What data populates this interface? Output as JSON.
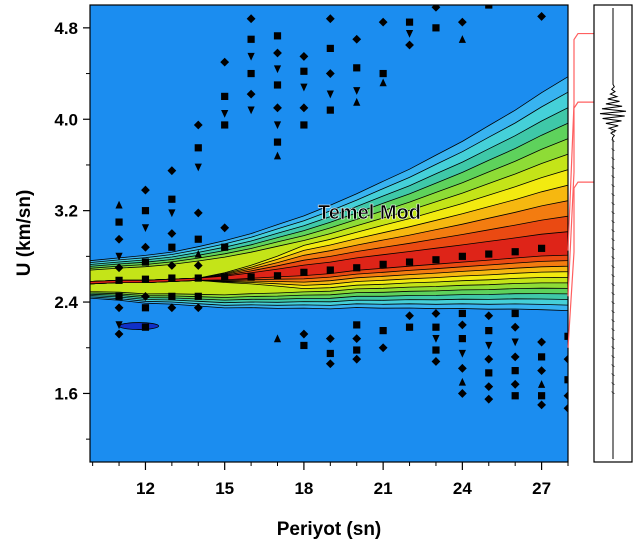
{
  "chart_data": {
    "type": "heatmap",
    "xlabel": "Periyot (sn)",
    "ylabel": "U (km/sn)",
    "xlim": [
      9.9,
      28.0
    ],
    "ylim": [
      1.0,
      5.0
    ],
    "xticks": [
      12,
      15,
      18,
      21,
      24,
      27
    ],
    "yticks": [
      1.6,
      2.4,
      3.2,
      4.0,
      4.8
    ],
    "xtick_labels": [
      "12",
      "15",
      "18",
      "21",
      "24",
      "27"
    ],
    "ytick_labels": [
      "1.6",
      "2.4",
      "3.2",
      "4.0",
      "4.8"
    ],
    "annotation": "Temel Mod",
    "colors": [
      "#1b8df0",
      "#38b3f0",
      "#45d0d8",
      "#3fc8a8",
      "#5ed25c",
      "#8edc36",
      "#c4e418",
      "#f2ea10",
      "#f6b810",
      "#f37c10",
      "#ea4a12",
      "#de2418"
    ],
    "ridge": [
      {
        "x": 9.9,
        "y": 2.57,
        "w": 0.05
      },
      {
        "x": 11,
        "y": 2.58,
        "w": 0.06
      },
      {
        "x": 12,
        "y": 2.58,
        "w": 0.07
      },
      {
        "x": 13,
        "y": 2.59,
        "w": 0.07
      },
      {
        "x": 14,
        "y": 2.6,
        "w": 0.08
      },
      {
        "x": 15,
        "y": 2.61,
        "w": 0.09
      },
      {
        "x": 16,
        "y": 2.63,
        "w": 0.09
      },
      {
        "x": 17,
        "y": 2.65,
        "w": 0.1
      },
      {
        "x": 18,
        "y": 2.67,
        "w": 0.1
      },
      {
        "x": 19,
        "y": 2.69,
        "w": 0.11
      },
      {
        "x": 20,
        "y": 2.72,
        "w": 0.11
      },
      {
        "x": 21,
        "y": 2.74,
        "w": 0.12
      },
      {
        "x": 22,
        "y": 2.76,
        "w": 0.12
      },
      {
        "x": 23,
        "y": 2.78,
        "w": 0.13
      },
      {
        "x": 24,
        "y": 2.8,
        "w": 0.13
      },
      {
        "x": 25,
        "y": 2.82,
        "w": 0.14
      },
      {
        "x": 26,
        "y": 2.84,
        "w": 0.14
      },
      {
        "x": 27,
        "y": 2.86,
        "w": 0.15
      },
      {
        "x": 28.0,
        "y": 2.87,
        "w": 0.15
      }
    ],
    "ridge_points": [
      {
        "x": 11,
        "y": 2.59
      },
      {
        "x": 12,
        "y": 2.6
      },
      {
        "x": 13,
        "y": 2.61
      },
      {
        "x": 14,
        "y": 2.61
      },
      {
        "x": 15,
        "y": 2.62
      },
      {
        "x": 16,
        "y": 2.62
      },
      {
        "x": 17,
        "y": 2.63
      },
      {
        "x": 18,
        "y": 2.66
      },
      {
        "x": 19,
        "y": 2.68
      },
      {
        "x": 20,
        "y": 2.7
      },
      {
        "x": 21,
        "y": 2.73
      },
      {
        "x": 22,
        "y": 2.75
      },
      {
        "x": 23,
        "y": 2.77
      },
      {
        "x": 24,
        "y": 2.8
      },
      {
        "x": 25,
        "y": 2.82
      },
      {
        "x": 26,
        "y": 2.84
      },
      {
        "x": 27,
        "y": 2.87
      }
    ],
    "scatter_points": [
      {
        "x": 11,
        "y": 3.25,
        "m": "up"
      },
      {
        "x": 11,
        "y": 3.1,
        "m": "sq"
      },
      {
        "x": 11,
        "y": 2.95,
        "m": "dia"
      },
      {
        "x": 11,
        "y": 2.8,
        "m": "down"
      },
      {
        "x": 11,
        "y": 2.7,
        "m": "dia"
      },
      {
        "x": 11,
        "y": 2.45,
        "m": "sq"
      },
      {
        "x": 11,
        "y": 2.35,
        "m": "dia"
      },
      {
        "x": 11,
        "y": 2.2,
        "m": "down"
      },
      {
        "x": 11,
        "y": 2.12,
        "m": "dia"
      },
      {
        "x": 12,
        "y": 3.38,
        "m": "dia"
      },
      {
        "x": 12,
        "y": 3.2,
        "m": "sq"
      },
      {
        "x": 12,
        "y": 3.05,
        "m": "down"
      },
      {
        "x": 12,
        "y": 2.88,
        "m": "dia"
      },
      {
        "x": 12,
        "y": 2.75,
        "m": "sq"
      },
      {
        "x": 12,
        "y": 2.45,
        "m": "dia"
      },
      {
        "x": 12,
        "y": 2.35,
        "m": "sq"
      },
      {
        "x": 12,
        "y": 2.18,
        "m": "sq"
      },
      {
        "x": 13,
        "y": 3.55,
        "m": "dia"
      },
      {
        "x": 13,
        "y": 3.3,
        "m": "sq"
      },
      {
        "x": 13,
        "y": 3.18,
        "m": "down"
      },
      {
        "x": 13,
        "y": 3.0,
        "m": "dia"
      },
      {
        "x": 13,
        "y": 2.88,
        "m": "sq"
      },
      {
        "x": 13,
        "y": 2.72,
        "m": "dia"
      },
      {
        "x": 13,
        "y": 2.45,
        "m": "sq"
      },
      {
        "x": 13,
        "y": 2.35,
        "m": "dia"
      },
      {
        "x": 14,
        "y": 3.95,
        "m": "dia"
      },
      {
        "x": 14,
        "y": 3.75,
        "m": "sq"
      },
      {
        "x": 14,
        "y": 3.58,
        "m": "down"
      },
      {
        "x": 14,
        "y": 3.18,
        "m": "dia"
      },
      {
        "x": 14,
        "y": 2.95,
        "m": "sq"
      },
      {
        "x": 14,
        "y": 2.82,
        "m": "up"
      },
      {
        "x": 14,
        "y": 2.72,
        "m": "dia"
      },
      {
        "x": 14,
        "y": 2.45,
        "m": "sq"
      },
      {
        "x": 14,
        "y": 2.35,
        "m": "dia"
      },
      {
        "x": 15,
        "y": 4.5,
        "m": "dia"
      },
      {
        "x": 15,
        "y": 4.2,
        "m": "sq"
      },
      {
        "x": 15,
        "y": 4.05,
        "m": "down"
      },
      {
        "x": 15,
        "y": 3.95,
        "m": "sq"
      },
      {
        "x": 15,
        "y": 3.05,
        "m": "dia"
      },
      {
        "x": 15,
        "y": 2.88,
        "m": "sq"
      },
      {
        "x": 16,
        "y": 4.88,
        "m": "dia"
      },
      {
        "x": 16,
        "y": 4.7,
        "m": "sq"
      },
      {
        "x": 16,
        "y": 4.55,
        "m": "down"
      },
      {
        "x": 16,
        "y": 4.4,
        "m": "sq"
      },
      {
        "x": 16,
        "y": 4.22,
        "m": "dia"
      },
      {
        "x": 16,
        "y": 4.08,
        "m": "down"
      },
      {
        "x": 17,
        "y": 4.73,
        "m": "sq"
      },
      {
        "x": 17,
        "y": 4.58,
        "m": "dia"
      },
      {
        "x": 17,
        "y": 4.44,
        "m": "down"
      },
      {
        "x": 17,
        "y": 4.3,
        "m": "sq"
      },
      {
        "x": 17,
        "y": 4.1,
        "m": "dia"
      },
      {
        "x": 17,
        "y": 3.95,
        "m": "down"
      },
      {
        "x": 17,
        "y": 3.8,
        "m": "sq"
      },
      {
        "x": 17,
        "y": 3.68,
        "m": "up"
      },
      {
        "x": 17,
        "y": 2.08,
        "m": "up"
      },
      {
        "x": 18,
        "y": 4.55,
        "m": "dia"
      },
      {
        "x": 18,
        "y": 4.42,
        "m": "sq"
      },
      {
        "x": 18,
        "y": 4.28,
        "m": "down"
      },
      {
        "x": 18,
        "y": 4.1,
        "m": "dia"
      },
      {
        "x": 18,
        "y": 3.95,
        "m": "sq"
      },
      {
        "x": 18,
        "y": 2.12,
        "m": "dia"
      },
      {
        "x": 18,
        "y": 2.02,
        "m": "sq"
      },
      {
        "x": 19,
        "y": 4.88,
        "m": "dia"
      },
      {
        "x": 19,
        "y": 4.62,
        "m": "sq"
      },
      {
        "x": 19,
        "y": 4.4,
        "m": "dia"
      },
      {
        "x": 19,
        "y": 4.22,
        "m": "down"
      },
      {
        "x": 19,
        "y": 4.08,
        "m": "sq"
      },
      {
        "x": 19,
        "y": 2.08,
        "m": "dia"
      },
      {
        "x": 19,
        "y": 1.95,
        "m": "sq"
      },
      {
        "x": 19,
        "y": 1.86,
        "m": "dia"
      },
      {
        "x": 20,
        "y": 4.7,
        "m": "dia"
      },
      {
        "x": 20,
        "y": 4.45,
        "m": "sq"
      },
      {
        "x": 20,
        "y": 4.25,
        "m": "down"
      },
      {
        "x": 20,
        "y": 4.15,
        "m": "up"
      },
      {
        "x": 20,
        "y": 2.2,
        "m": "sq"
      },
      {
        "x": 20,
        "y": 2.08,
        "m": "dia"
      },
      {
        "x": 20,
        "y": 1.98,
        "m": "sq"
      },
      {
        "x": 20,
        "y": 1.9,
        "m": "dia"
      },
      {
        "x": 21,
        "y": 4.85,
        "m": "dia"
      },
      {
        "x": 21,
        "y": 4.4,
        "m": "sq"
      },
      {
        "x": 21,
        "y": 4.32,
        "m": "up"
      },
      {
        "x": 21,
        "y": 2.15,
        "m": "sq"
      },
      {
        "x": 21,
        "y": 2.0,
        "m": "dia"
      },
      {
        "x": 22,
        "y": 4.85,
        "m": "sq"
      },
      {
        "x": 22,
        "y": 4.75,
        "m": "down"
      },
      {
        "x": 22,
        "y": 4.65,
        "m": "dia"
      },
      {
        "x": 22,
        "y": 2.28,
        "m": "dia"
      },
      {
        "x": 22,
        "y": 2.18,
        "m": "sq"
      },
      {
        "x": 23,
        "y": 4.98,
        "m": "dia"
      },
      {
        "x": 23,
        "y": 4.8,
        "m": "sq"
      },
      {
        "x": 23,
        "y": 2.3,
        "m": "dia"
      },
      {
        "x": 23,
        "y": 2.18,
        "m": "sq"
      },
      {
        "x": 23,
        "y": 2.08,
        "m": "down"
      },
      {
        "x": 23,
        "y": 1.98,
        "m": "sq"
      },
      {
        "x": 23,
        "y": 1.88,
        "m": "dia"
      },
      {
        "x": 24,
        "y": 4.85,
        "m": "dia"
      },
      {
        "x": 24,
        "y": 4.7,
        "m": "up"
      },
      {
        "x": 24,
        "y": 2.3,
        "m": "sq"
      },
      {
        "x": 24,
        "y": 2.2,
        "m": "dia"
      },
      {
        "x": 24,
        "y": 2.08,
        "m": "sq"
      },
      {
        "x": 24,
        "y": 1.95,
        "m": "down"
      },
      {
        "x": 24,
        "y": 1.82,
        "m": "dia"
      },
      {
        "x": 24,
        "y": 1.7,
        "m": "up"
      },
      {
        "x": 24,
        "y": 1.6,
        "m": "dia"
      },
      {
        "x": 25,
        "y": 5.0,
        "m": "sq"
      },
      {
        "x": 25,
        "y": 2.28,
        "m": "dia"
      },
      {
        "x": 25,
        "y": 2.15,
        "m": "sq"
      },
      {
        "x": 25,
        "y": 2.02,
        "m": "down"
      },
      {
        "x": 25,
        "y": 1.9,
        "m": "dia"
      },
      {
        "x": 25,
        "y": 1.78,
        "m": "sq"
      },
      {
        "x": 25,
        "y": 1.66,
        "m": "dia"
      },
      {
        "x": 25,
        "y": 1.55,
        "m": "dia"
      },
      {
        "x": 26,
        "y": 2.3,
        "m": "sq"
      },
      {
        "x": 26,
        "y": 2.18,
        "m": "dia"
      },
      {
        "x": 26,
        "y": 2.05,
        "m": "down"
      },
      {
        "x": 26,
        "y": 1.92,
        "m": "dia"
      },
      {
        "x": 26,
        "y": 1.8,
        "m": "sq"
      },
      {
        "x": 26,
        "y": 1.68,
        "m": "dia"
      },
      {
        "x": 26,
        "y": 1.58,
        "m": "sq"
      },
      {
        "x": 27,
        "y": 4.9,
        "m": "dia"
      },
      {
        "x": 27,
        "y": 2.05,
        "m": "dia"
      },
      {
        "x": 27,
        "y": 1.92,
        "m": "sq"
      },
      {
        "x": 27,
        "y": 1.8,
        "m": "dia"
      },
      {
        "x": 27,
        "y": 1.68,
        "m": "up"
      },
      {
        "x": 27,
        "y": 1.58,
        "m": "sq"
      },
      {
        "x": 27,
        "y": 1.5,
        "m": "dia"
      },
      {
        "x": 28.0,
        "y": 2.1,
        "m": "sq"
      },
      {
        "x": 28.0,
        "y": 1.9,
        "m": "dia"
      },
      {
        "x": 28.0,
        "y": 1.72,
        "m": "sq"
      },
      {
        "x": 28.0,
        "y": 1.58,
        "m": "dia"
      },
      {
        "x": 28.0,
        "y": 1.47,
        "m": "dia"
      }
    ],
    "blue_blob": {
      "x_from": 11.0,
      "x_to": 12.5,
      "y": 2.19
    },
    "seismogram": {
      "top_y": 5.05,
      "bottom_y": 1.0,
      "center_y": 4.06,
      "amplitudes": [
        0,
        0.1,
        -0.1,
        0.15,
        -0.2,
        0.3,
        -0.4,
        0.5,
        -0.55,
        0.7,
        -0.85,
        1.0,
        -1.0,
        0.9,
        -0.8,
        0.65,
        -0.55,
        0.4,
        -0.3,
        0.2,
        -0.15,
        0.1,
        -0.05,
        0
      ]
    },
    "red_link_levels": [
      4.75,
      4.15,
      3.45
    ]
  }
}
